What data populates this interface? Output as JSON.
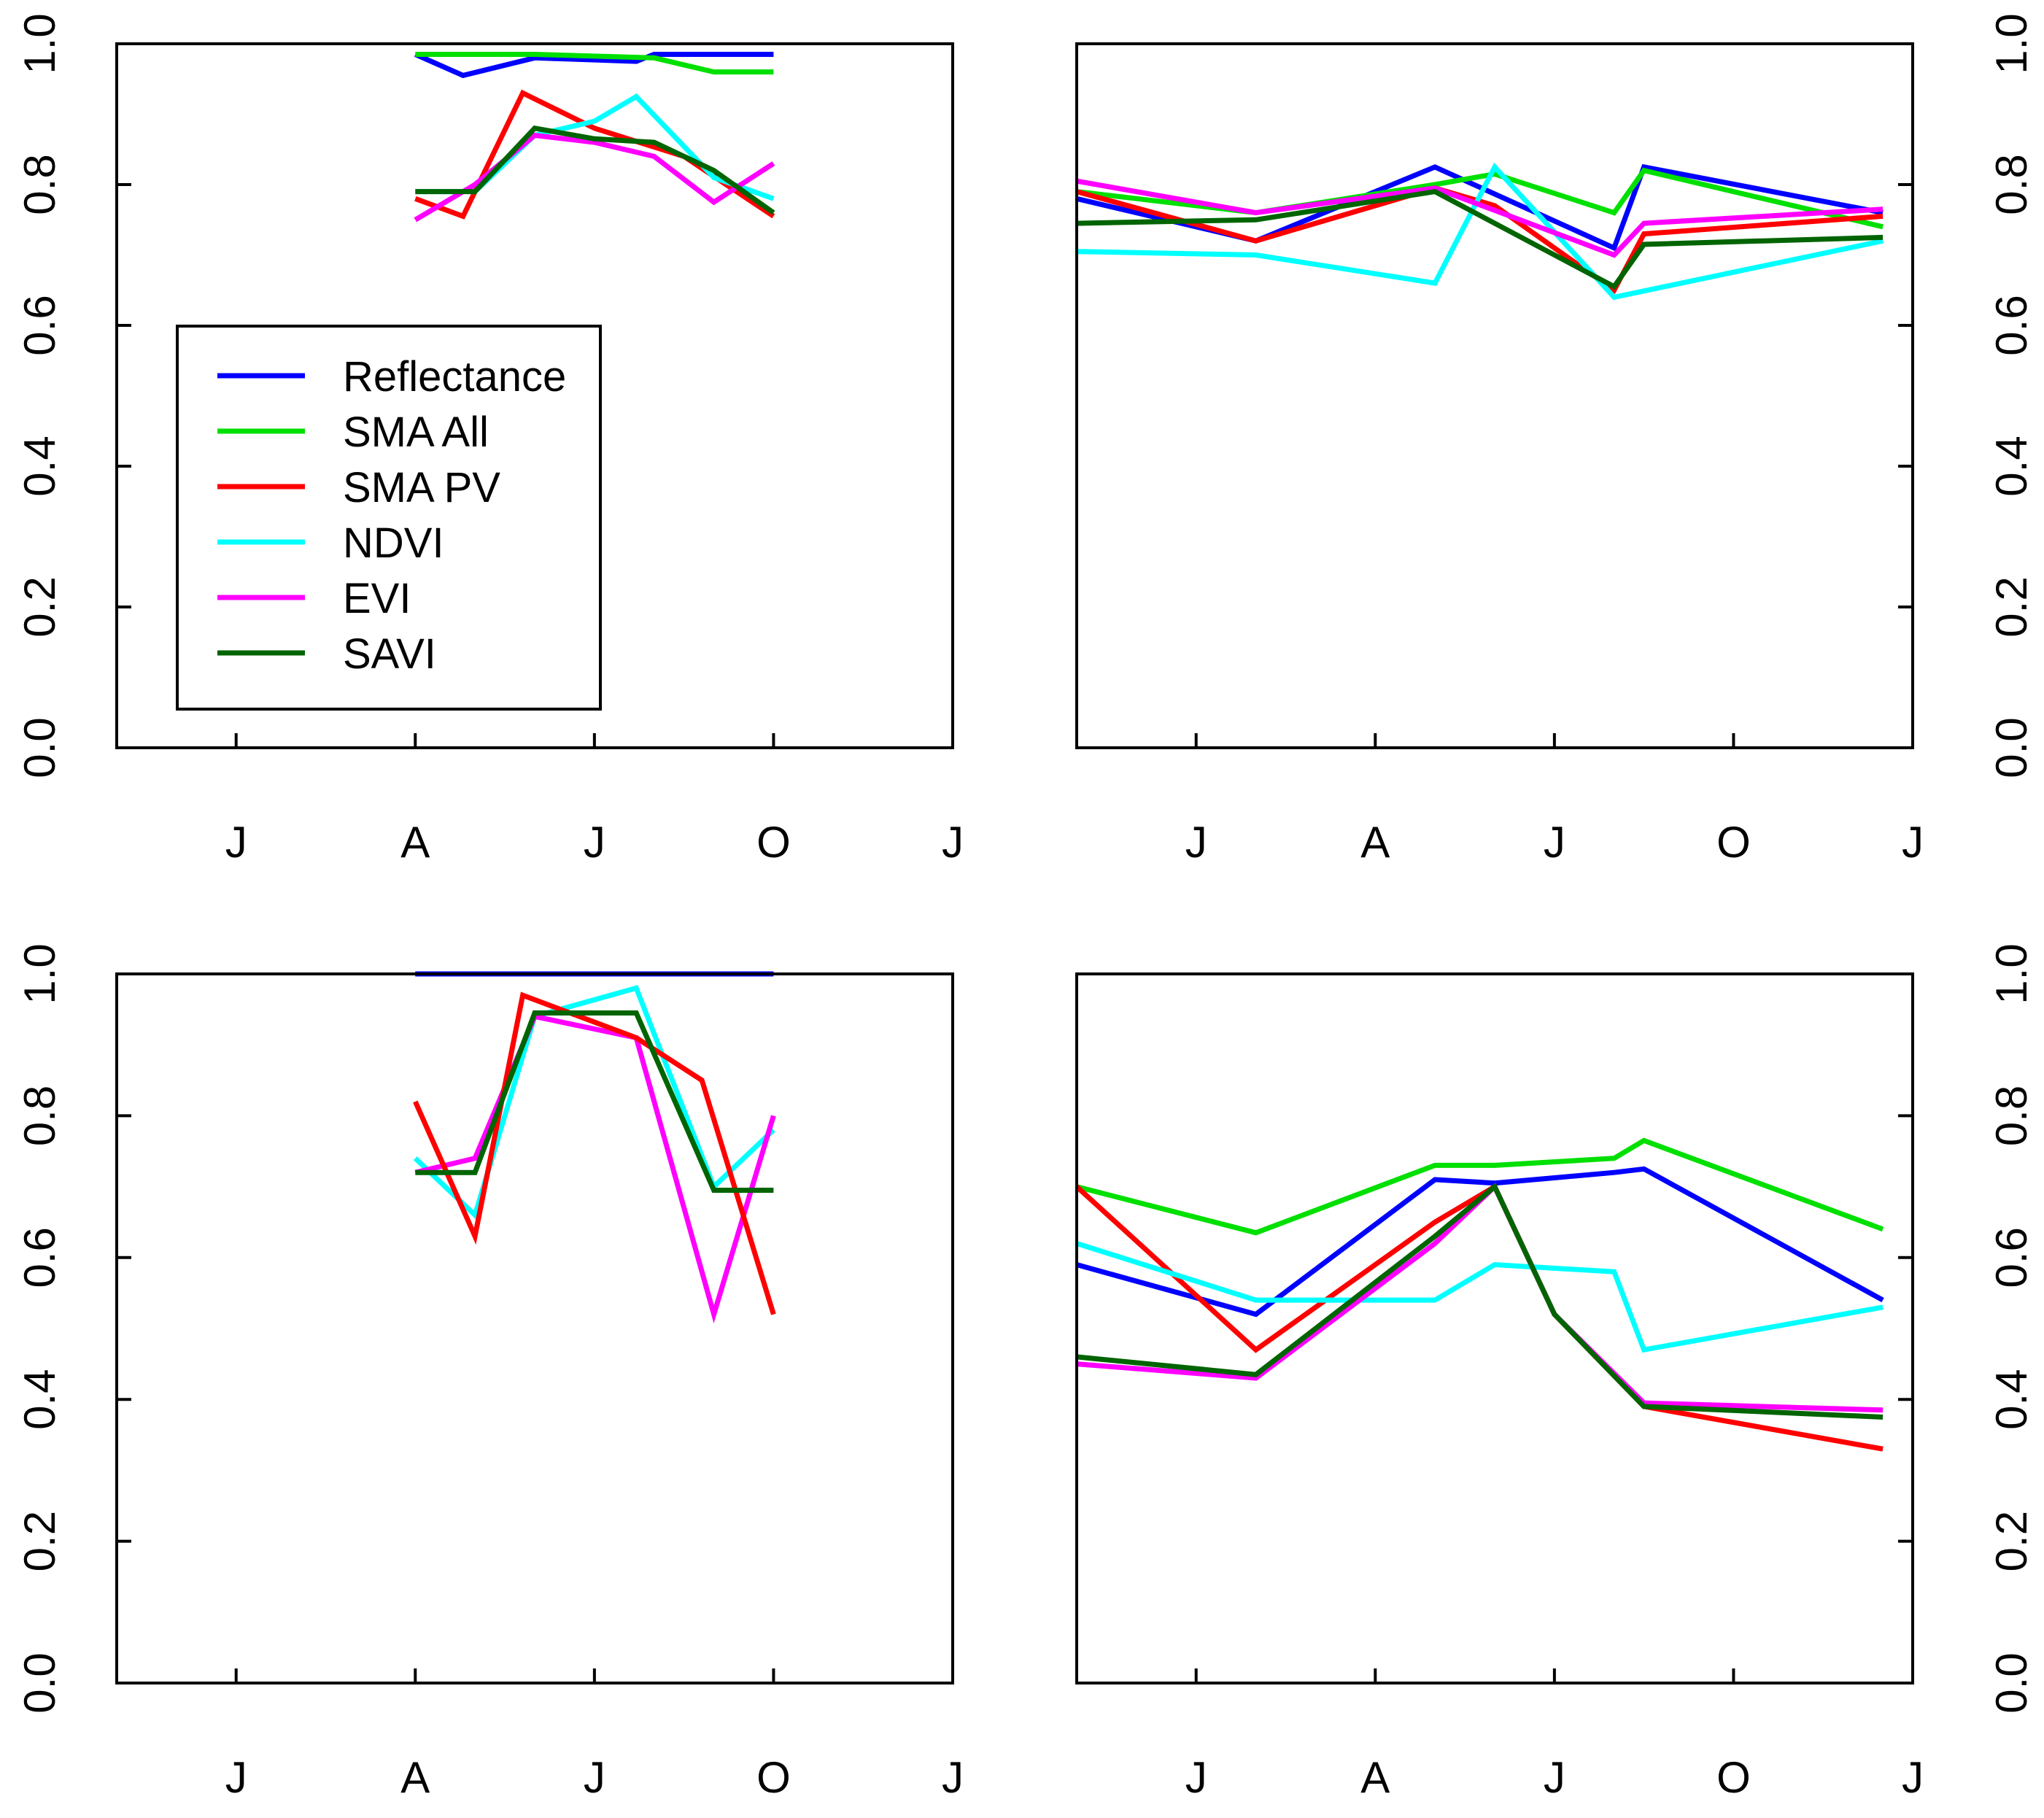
{
  "colors": {
    "Reflectance": "#0000ff",
    "SMA All": "#00e000",
    "SMA PV": "#ff0000",
    "NDVI": "#00ffff",
    "EVI": "#ff00ff",
    "SAVI": "#006400"
  },
  "legend": {
    "entries": [
      "Reflectance",
      "SMA All",
      "SMA PV",
      "NDVI",
      "EVI",
      "SAVI"
    ]
  },
  "chart_data": [
    {
      "type": "line",
      "panel": "top-left",
      "x_tick_labels": [
        "J",
        "A",
        "J",
        "O",
        "J"
      ],
      "x_ticks": [
        0,
        3,
        6,
        9,
        12
      ],
      "xlim": [
        -2,
        12
      ],
      "ylim": [
        0,
        1
      ],
      "y_ticks": [
        0.0,
        0.2,
        0.4,
        0.6,
        0.8,
        1.0
      ],
      "y_tick_labels": [
        "0.0",
        "0.2",
        "0.4",
        "0.6",
        "0.8",
        "1.0"
      ],
      "y_axis_side": "left",
      "series": [
        {
          "name": "Reflectance",
          "x": [
            3,
            3.8,
            5,
            6.7,
            7,
            9
          ],
          "y": [
            0.985,
            0.955,
            0.98,
            0.975,
            0.985,
            0.985
          ]
        },
        {
          "name": "SMA All",
          "x": [
            3,
            5,
            7,
            8,
            9
          ],
          "y": [
            0.985,
            0.985,
            0.98,
            0.96,
            0.96
          ]
        },
        {
          "name": "SMA PV",
          "x": [
            3,
            3.8,
            4.8,
            6,
            7.5,
            9
          ],
          "y": [
            0.78,
            0.755,
            0.93,
            0.88,
            0.84,
            0.755
          ]
        },
        {
          "name": "NDVI",
          "x": [
            3,
            4,
            5,
            6,
            6.7,
            8,
            9
          ],
          "y": [
            0.79,
            0.79,
            0.87,
            0.89,
            0.925,
            0.81,
            0.78
          ]
        },
        {
          "name": "EVI",
          "x": [
            3,
            4,
            5,
            6,
            7,
            8,
            9
          ],
          "y": [
            0.75,
            0.8,
            0.87,
            0.86,
            0.84,
            0.775,
            0.83
          ]
        },
        {
          "name": "SAVI",
          "x": [
            3,
            4,
            5,
            6,
            7,
            8,
            9
          ],
          "y": [
            0.79,
            0.79,
            0.88,
            0.865,
            0.86,
            0.82,
            0.76
          ]
        }
      ]
    },
    {
      "type": "line",
      "panel": "top-right",
      "x_tick_labels": [
        "J",
        "A",
        "J",
        "O",
        "J"
      ],
      "x_ticks": [
        0,
        3,
        6,
        9,
        12
      ],
      "xlim": [
        -2,
        12
      ],
      "ylim": [
        0,
        1
      ],
      "y_ticks": [
        0.0,
        0.2,
        0.4,
        0.6,
        0.8,
        1.0
      ],
      "y_tick_labels": [
        "0.0",
        "0.2",
        "0.4",
        "0.6",
        "0.8",
        "1.0"
      ],
      "y_axis_side": "right",
      "series": [
        {
          "name": "Reflectance",
          "x": [
            -2,
            1,
            4,
            7,
            7.5,
            11.5
          ],
          "y": [
            0.78,
            0.72,
            0.825,
            0.71,
            0.825,
            0.76
          ]
        },
        {
          "name": "SMA All",
          "x": [
            -2,
            1,
            4,
            5,
            7,
            7.5,
            11.5
          ],
          "y": [
            0.79,
            0.76,
            0.8,
            0.815,
            0.76,
            0.82,
            0.74
          ]
        },
        {
          "name": "SMA PV",
          "x": [
            -2,
            1,
            4,
            5,
            7,
            7.5,
            11.5
          ],
          "y": [
            0.79,
            0.72,
            0.795,
            0.77,
            0.65,
            0.73,
            0.755
          ]
        },
        {
          "name": "NDVI",
          "x": [
            -2,
            1,
            4,
            5,
            7,
            11.5
          ],
          "y": [
            0.705,
            0.7,
            0.66,
            0.825,
            0.64,
            0.72
          ]
        },
        {
          "name": "EVI",
          "x": [
            -2,
            1,
            4,
            7,
            7.5,
            11.5
          ],
          "y": [
            0.805,
            0.76,
            0.795,
            0.7,
            0.745,
            0.765
          ]
        },
        {
          "name": "SAVI",
          "x": [
            -2,
            1,
            4,
            7,
            7.5,
            11.5
          ],
          "y": [
            0.745,
            0.75,
            0.79,
            0.655,
            0.715,
            0.725
          ]
        }
      ]
    },
    {
      "type": "line",
      "panel": "bottom-left",
      "x_tick_labels": [
        "J",
        "A",
        "J",
        "O",
        "J"
      ],
      "x_ticks": [
        0,
        3,
        6,
        9,
        12
      ],
      "xlim": [
        -2,
        12
      ],
      "ylim": [
        0,
        1
      ],
      "y_ticks": [
        0.0,
        0.2,
        0.4,
        0.6,
        0.8,
        1.0
      ],
      "y_tick_labels": [
        "0.0",
        "0.2",
        "0.4",
        "0.6",
        "0.8",
        "1.0"
      ],
      "y_axis_side": "left",
      "series": [
        {
          "name": "SMA All",
          "x": [
            3,
            9
          ],
          "y": [
            1.0,
            1.0
          ]
        },
        {
          "name": "Reflectance",
          "x": [
            3,
            9
          ],
          "y": [
            1.0,
            1.0
          ]
        },
        {
          "name": "NDVI",
          "x": [
            3,
            4,
            5,
            6.7,
            8,
            9
          ],
          "y": [
            0.74,
            0.66,
            0.94,
            0.98,
            0.7,
            0.78
          ]
        },
        {
          "name": "EVI",
          "x": [
            3,
            4,
            5,
            6.7,
            8,
            9
          ],
          "y": [
            0.72,
            0.74,
            0.94,
            0.91,
            0.52,
            0.8
          ]
        },
        {
          "name": "SMA PV",
          "x": [
            3,
            4,
            4.8,
            6.7,
            7.8,
            9
          ],
          "y": [
            0.82,
            0.63,
            0.97,
            0.91,
            0.85,
            0.52
          ]
        },
        {
          "name": "SAVI",
          "x": [
            3,
            4,
            5,
            6.7,
            8,
            9
          ],
          "y": [
            0.72,
            0.72,
            0.945,
            0.945,
            0.695,
            0.695
          ]
        }
      ]
    },
    {
      "type": "line",
      "panel": "bottom-right",
      "x_tick_labels": [
        "J",
        "A",
        "J",
        "O",
        "J"
      ],
      "x_ticks": [
        0,
        3,
        6,
        9,
        12
      ],
      "xlim": [
        -2,
        12
      ],
      "ylim": [
        0,
        1
      ],
      "y_ticks": [
        0.0,
        0.2,
        0.4,
        0.6,
        0.8,
        1.0
      ],
      "y_tick_labels": [
        "0.0",
        "0.2",
        "0.4",
        "0.6",
        "0.8",
        "1.0"
      ],
      "y_axis_side": "right",
      "series": [
        {
          "name": "Reflectance",
          "x": [
            -2,
            1,
            4,
            5,
            7,
            7.5,
            11.5
          ],
          "y": [
            0.59,
            0.52,
            0.71,
            0.705,
            0.72,
            0.725,
            0.54
          ]
        },
        {
          "name": "SMA All",
          "x": [
            -2,
            1,
            4,
            5,
            7,
            7.5,
            11.5
          ],
          "y": [
            0.7,
            0.635,
            0.73,
            0.73,
            0.74,
            0.765,
            0.64
          ]
        },
        {
          "name": "SMA PV",
          "x": [
            -2,
            1,
            4,
            5,
            6,
            7.5,
            11.5
          ],
          "y": [
            0.7,
            0.47,
            0.65,
            0.7,
            0.52,
            0.39,
            0.33
          ]
        },
        {
          "name": "NDVI",
          "x": [
            -2,
            1,
            4,
            5,
            7,
            7.5,
            11.5
          ],
          "y": [
            0.62,
            0.54,
            0.54,
            0.59,
            0.58,
            0.47,
            0.53
          ]
        },
        {
          "name": "EVI",
          "x": [
            -2,
            1,
            4,
            5,
            6,
            7.5,
            11.5
          ],
          "y": [
            0.45,
            0.43,
            0.62,
            0.7,
            0.52,
            0.395,
            0.385
          ]
        },
        {
          "name": "SAVI",
          "x": [
            -2,
            1,
            4,
            5,
            6,
            7.5,
            11.5
          ],
          "y": [
            0.46,
            0.435,
            0.63,
            0.7,
            0.52,
            0.39,
            0.375
          ]
        }
      ]
    }
  ]
}
